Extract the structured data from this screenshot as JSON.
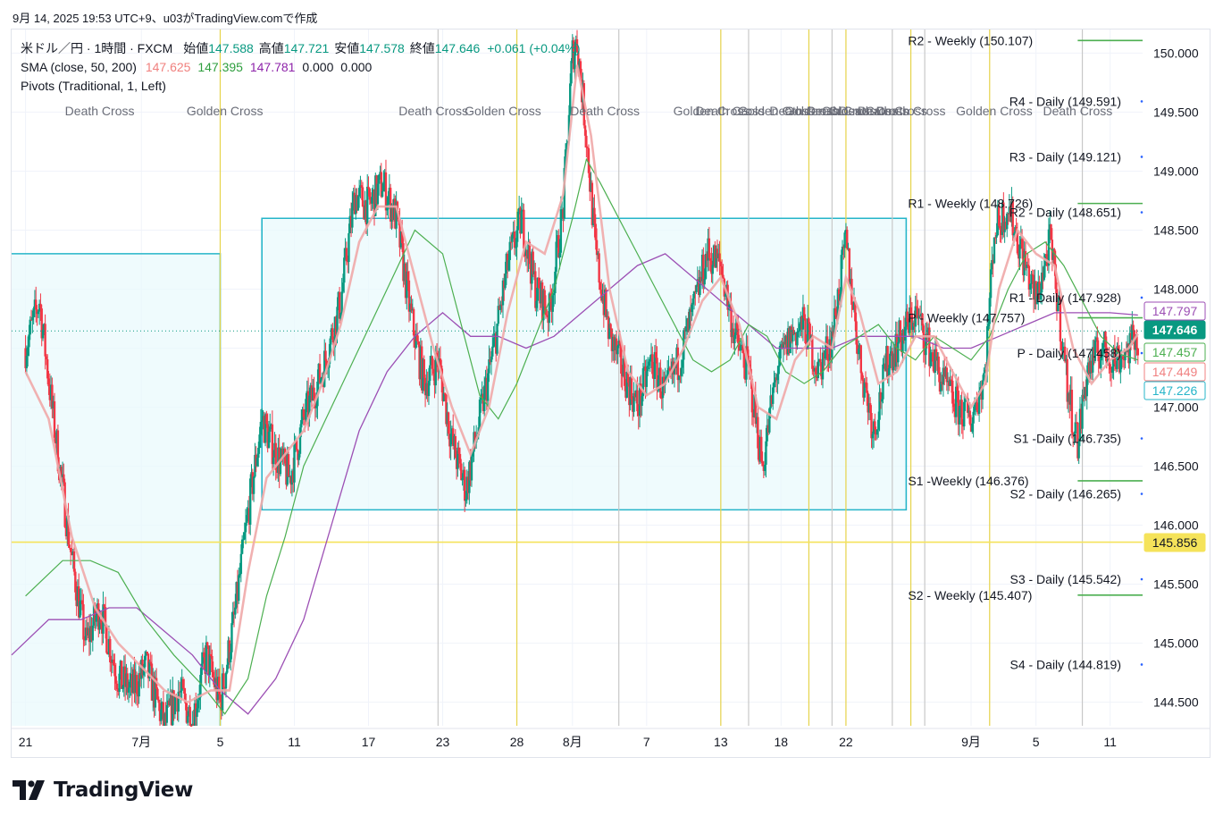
{
  "header": {
    "caption": "9月 14, 2025 19:53 UTC+9、u03がTradingView.comで作成"
  },
  "legend": {
    "symbol": "米ドル／円 · 1時間 · FXCM",
    "open_label": "始値",
    "open": "147.588",
    "high_label": "高値",
    "high": "147.721",
    "low_label": "安値",
    "low": "147.578",
    "close_label": "終値",
    "close": "147.646",
    "change": "+0.061 (+0.04%)",
    "sma_title": "SMA (close, 50, 200)",
    "sma_v1": "147.625",
    "sma_v2": "147.395",
    "sma_v3": "147.781",
    "sma_v4": "0.000",
    "sma_v5": "0.000",
    "pivots_title": "Pivots (Traditional, 1, Left)"
  },
  "logo": {
    "text": "TradingView"
  },
  "colors": {
    "up": "#089981",
    "down": "#f23645",
    "sma_fast": "#f0a8a8",
    "sma_mid": "#4caf50",
    "sma_slow": "#9c4fb4",
    "box": "#26b5c9",
    "box_fill": "#eafafc",
    "pivot_weekly": "#4caf50",
    "pivot_daily": "#2962ff",
    "vline": "#e6d34a",
    "vline_gray": "#c8c8c8",
    "hline": "#f5e35a"
  },
  "chart_data": {
    "type": "candlestick",
    "symbol": "USDJPY",
    "timeframe": "1時間",
    "y_axis": {
      "range": [
        144.3,
        150.2
      ],
      "ticks": [
        "144.500",
        "145.000",
        "145.500",
        "146.000",
        "146.500",
        "147.000",
        "147.500",
        "148.000",
        "148.500",
        "149.000",
        "149.500",
        "150.000"
      ]
    },
    "x_axis": {
      "ticks": [
        {
          "label": "21",
          "t": 0
        },
        {
          "label": "7月",
          "t": 25
        },
        {
          "label": "5",
          "t": 42
        },
        {
          "label": "11",
          "t": 58
        },
        {
          "label": "17",
          "t": 74
        },
        {
          "label": "23",
          "t": 90
        },
        {
          "label": "28",
          "t": 106
        },
        {
          "label": "8月",
          "t": 118
        },
        {
          "label": "7",
          "t": 134
        },
        {
          "label": "13",
          "t": 150
        },
        {
          "label": "18",
          "t": 163
        },
        {
          "label": "22",
          "t": 177
        },
        {
          "label": "9月",
          "t": 204
        },
        {
          "label": "5",
          "t": 218
        },
        {
          "label": "11",
          "t": 234
        }
      ],
      "range": [
        -3,
        241
      ]
    },
    "price_path": [
      [
        0,
        147.5
      ],
      [
        3,
        147.9
      ],
      [
        6,
        146.9
      ],
      [
        10,
        145.7
      ],
      [
        13,
        145.0
      ],
      [
        16,
        145.3
      ],
      [
        20,
        144.7
      ],
      [
        23,
        144.6
      ],
      [
        26,
        144.8
      ],
      [
        30,
        144.3
      ],
      [
        33,
        144.6
      ],
      [
        36,
        144.35
      ],
      [
        39,
        144.9
      ],
      [
        42,
        144.5
      ],
      [
        45,
        145.2
      ],
      [
        48,
        146.1
      ],
      [
        51,
        146.9
      ],
      [
        54,
        146.6
      ],
      [
        57,
        146.4
      ],
      [
        60,
        146.9
      ],
      [
        64,
        147.3
      ],
      [
        68,
        147.9
      ],
      [
        71,
        148.8
      ],
      [
        74,
        148.7
      ],
      [
        77,
        148.9
      ],
      [
        80,
        148.6
      ],
      [
        83,
        147.8
      ],
      [
        86,
        147.2
      ],
      [
        89,
        147.4
      ],
      [
        92,
        146.7
      ],
      [
        95,
        146.3
      ],
      [
        98,
        146.9
      ],
      [
        101,
        147.5
      ],
      [
        104,
        148.2
      ],
      [
        107,
        148.6
      ],
      [
        110,
        148.0
      ],
      [
        113,
        147.8
      ],
      [
        116,
        148.7
      ],
      [
        118,
        150.0
      ],
      [
        119,
        150.1
      ],
      [
        121,
        149.3
      ],
      [
        123,
        148.3
      ],
      [
        126,
        147.6
      ],
      [
        129,
        147.3
      ],
      [
        132,
        147.0
      ],
      [
        135,
        147.4
      ],
      [
        138,
        147.1
      ],
      [
        141,
        147.4
      ],
      [
        144,
        147.8
      ],
      [
        147,
        148.3
      ],
      [
        150,
        148.2
      ],
      [
        153,
        147.6
      ],
      [
        156,
        147.3
      ],
      [
        159,
        146.5
      ],
      [
        162,
        147.3
      ],
      [
        165,
        147.6
      ],
      [
        168,
        147.7
      ],
      [
        171,
        147.3
      ],
      [
        174,
        147.6
      ],
      [
        177,
        148.4
      ],
      [
        180,
        147.4
      ],
      [
        183,
        146.8
      ],
      [
        186,
        147.4
      ],
      [
        189,
        147.6
      ],
      [
        192,
        147.8
      ],
      [
        195,
        147.5
      ],
      [
        198,
        147.2
      ],
      [
        201,
        147.0
      ],
      [
        204,
        146.9
      ],
      [
        207,
        147.3
      ],
      [
        209,
        148.5
      ],
      [
        212,
        148.7
      ],
      [
        215,
        148.3
      ],
      [
        218,
        147.9
      ],
      [
        221,
        148.4
      ],
      [
        223,
        147.8
      ],
      [
        225,
        147.1
      ],
      [
        227,
        146.7
      ],
      [
        229,
        147.3
      ],
      [
        232,
        147.5
      ],
      [
        235,
        147.4
      ],
      [
        238,
        147.5
      ],
      [
        240,
        147.6
      ]
    ],
    "sma_fast_path": [
      [
        0,
        147.3
      ],
      [
        5,
        146.9
      ],
      [
        10,
        145.9
      ],
      [
        15,
        145.3
      ],
      [
        20,
        145.0
      ],
      [
        25,
        144.8
      ],
      [
        30,
        144.6
      ],
      [
        35,
        144.5
      ],
      [
        40,
        144.6
      ],
      [
        44,
        144.6
      ],
      [
        48,
        145.6
      ],
      [
        52,
        146.4
      ],
      [
        56,
        146.6
      ],
      [
        60,
        146.8
      ],
      [
        64,
        147.2
      ],
      [
        68,
        147.7
      ],
      [
        72,
        148.4
      ],
      [
        76,
        148.7
      ],
      [
        80,
        148.7
      ],
      [
        84,
        148.1
      ],
      [
        88,
        147.5
      ],
      [
        92,
        147.0
      ],
      [
        96,
        146.6
      ],
      [
        100,
        147.0
      ],
      [
        104,
        147.8
      ],
      [
        108,
        148.4
      ],
      [
        112,
        148.3
      ],
      [
        116,
        148.8
      ],
      [
        119,
        149.9
      ],
      [
        122,
        149.3
      ],
      [
        126,
        148.0
      ],
      [
        130,
        147.3
      ],
      [
        134,
        147.1
      ],
      [
        138,
        147.2
      ],
      [
        142,
        147.5
      ],
      [
        146,
        147.9
      ],
      [
        150,
        148.1
      ],
      [
        154,
        147.7
      ],
      [
        158,
        147.0
      ],
      [
        162,
        146.9
      ],
      [
        166,
        147.4
      ],
      [
        170,
        147.6
      ],
      [
        174,
        147.5
      ],
      [
        177,
        148.1
      ],
      [
        180,
        147.8
      ],
      [
        184,
        147.2
      ],
      [
        188,
        147.3
      ],
      [
        192,
        147.6
      ],
      [
        196,
        147.6
      ],
      [
        200,
        147.3
      ],
      [
        204,
        147.0
      ],
      [
        207,
        147.2
      ],
      [
        210,
        148.0
      ],
      [
        214,
        148.5
      ],
      [
        218,
        148.3
      ],
      [
        222,
        148.2
      ],
      [
        226,
        147.5
      ],
      [
        230,
        147.2
      ],
      [
        234,
        147.4
      ],
      [
        238,
        147.5
      ],
      [
        240,
        147.62
      ]
    ],
    "sma_mid_path": [
      [
        0,
        145.4
      ],
      [
        8,
        145.7
      ],
      [
        14,
        145.7
      ],
      [
        20,
        145.6
      ],
      [
        26,
        145.2
      ],
      [
        32,
        144.9
      ],
      [
        38,
        144.65
      ],
      [
        43,
        144.4
      ],
      [
        48,
        144.7
      ],
      [
        52,
        145.4
      ],
      [
        56,
        145.9
      ],
      [
        60,
        146.5
      ],
      [
        66,
        147.0
      ],
      [
        72,
        147.5
      ],
      [
        78,
        148.0
      ],
      [
        84,
        148.5
      ],
      [
        90,
        148.3
      ],
      [
        94,
        147.7
      ],
      [
        98,
        147.1
      ],
      [
        102,
        146.9
      ],
      [
        106,
        147.2
      ],
      [
        110,
        147.6
      ],
      [
        114,
        148.0
      ],
      [
        118,
        148.6
      ],
      [
        121,
        149.1
      ],
      [
        124,
        148.9
      ],
      [
        128,
        148.6
      ],
      [
        132,
        148.3
      ],
      [
        136,
        148.0
      ],
      [
        140,
        147.7
      ],
      [
        144,
        147.4
      ],
      [
        148,
        147.3
      ],
      [
        152,
        147.4
      ],
      [
        156,
        147.7
      ],
      [
        160,
        147.6
      ],
      [
        164,
        147.3
      ],
      [
        168,
        147.2
      ],
      [
        172,
        147.3
      ],
      [
        176,
        147.5
      ],
      [
        180,
        147.6
      ],
      [
        184,
        147.7
      ],
      [
        188,
        147.5
      ],
      [
        192,
        147.4
      ],
      [
        196,
        147.6
      ],
      [
        200,
        147.5
      ],
      [
        204,
        147.4
      ],
      [
        208,
        147.6
      ],
      [
        212,
        148.0
      ],
      [
        216,
        148.3
      ],
      [
        220,
        148.4
      ],
      [
        224,
        148.2
      ],
      [
        228,
        147.9
      ],
      [
        232,
        147.6
      ],
      [
        236,
        147.45
      ],
      [
        240,
        147.4
      ]
    ],
    "sma_slow_path": [
      [
        -3,
        144.9
      ],
      [
        5,
        145.2
      ],
      [
        12,
        145.2
      ],
      [
        18,
        145.3
      ],
      [
        24,
        145.3
      ],
      [
        30,
        145.1
      ],
      [
        36,
        144.9
      ],
      [
        42,
        144.6
      ],
      [
        48,
        144.4
      ],
      [
        54,
        144.7
      ],
      [
        60,
        145.2
      ],
      [
        66,
        146.0
      ],
      [
        72,
        146.8
      ],
      [
        78,
        147.3
      ],
      [
        84,
        147.6
      ],
      [
        90,
        147.8
      ],
      [
        96,
        147.6
      ],
      [
        102,
        147.6
      ],
      [
        108,
        147.5
      ],
      [
        114,
        147.6
      ],
      [
        120,
        147.8
      ],
      [
        126,
        148.0
      ],
      [
        132,
        148.2
      ],
      [
        138,
        148.3
      ],
      [
        144,
        148.1
      ],
      [
        150,
        147.9
      ],
      [
        156,
        147.7
      ],
      [
        162,
        147.5
      ],
      [
        168,
        147.5
      ],
      [
        174,
        147.5
      ],
      [
        180,
        147.6
      ],
      [
        186,
        147.6
      ],
      [
        192,
        147.6
      ],
      [
        198,
        147.5
      ],
      [
        204,
        147.5
      ],
      [
        210,
        147.6
      ],
      [
        216,
        147.7
      ],
      [
        222,
        147.8
      ],
      [
        228,
        147.8
      ],
      [
        234,
        147.8
      ],
      [
        240,
        147.78
      ]
    ],
    "boxes": [
      {
        "t0": -3,
        "t1": 42,
        "top": 148.3,
        "bottom": null
      },
      {
        "t0": 51,
        "t1": 190,
        "top": 148.6,
        "bottom": 146.13
      }
    ],
    "horizontal_lines": [
      {
        "price": 145.856,
        "label": "145.856"
      }
    ],
    "vertical_lines": [
      {
        "t": 42,
        "color": "yellow"
      },
      {
        "t": 89,
        "color": "gray"
      },
      {
        "t": 106,
        "color": "yellow"
      },
      {
        "t": 128,
        "color": "gray"
      },
      {
        "t": 150,
        "color": "yellow"
      },
      {
        "t": 156,
        "color": "gray"
      },
      {
        "t": 169,
        "color": "yellow"
      },
      {
        "t": 174,
        "color": "gray"
      },
      {
        "t": 177,
        "color": "yellow"
      },
      {
        "t": 187,
        "color": "gray"
      },
      {
        "t": 191,
        "color": "yellow"
      },
      {
        "t": 194,
        "color": "gray"
      },
      {
        "t": 208,
        "color": "yellow"
      },
      {
        "t": 228,
        "color": "gray"
      }
    ],
    "cross_annotations": [
      {
        "text": "Death Cross",
        "t": 16
      },
      {
        "text": "Golden Cross",
        "t": 43
      },
      {
        "text": "Death Cross",
        "t": 88
      },
      {
        "text": "Golden Cross",
        "t": 103
      },
      {
        "text": "Death Cross",
        "t": 125
      },
      {
        "text": "Golden Cross",
        "t": 148
      },
      {
        "text": "Death Cross",
        "t": 152
      },
      {
        "text": "Golden Cross",
        "t": 162
      },
      {
        "text": "Death Cross",
        "t": 168
      },
      {
        "text": "Golden Cross",
        "t": 172
      },
      {
        "text": "Death Cross",
        "t": 176
      },
      {
        "text": "Golden Cross",
        "t": 180
      },
      {
        "text": "Death Cross",
        "t": 183
      },
      {
        "text": "Death Cross",
        "t": 187
      },
      {
        "text": "Death Cross",
        "t": 191
      },
      {
        "text": "Golden Cross",
        "t": 209
      },
      {
        "text": "Death Cross",
        "t": 227
      }
    ],
    "pivots": [
      {
        "label": "R2 - Weekly (150.107)",
        "price": 150.107,
        "kind": "weekly",
        "t0": 190
      },
      {
        "label": "R4 - Daily (149.591)",
        "price": 149.591,
        "kind": "daily",
        "t0": 208
      },
      {
        "label": "R3 - Daily (149.121)",
        "price": 149.121,
        "kind": "daily",
        "t0": 208
      },
      {
        "label": "R1 - Weekly (148.726)",
        "price": 148.726,
        "kind": "weekly",
        "t0": 190
      },
      {
        "label": "R2 - Daily (148.651)",
        "price": 148.651,
        "kind": "daily",
        "t0": 208
      },
      {
        "label": "R1 - Daily (147.928)",
        "price": 147.928,
        "kind": "daily",
        "t0": 208
      },
      {
        "label": "P - Weekly (147.757)",
        "price": 147.757,
        "kind": "weekly",
        "t0": 190
      },
      {
        "label": "P - Daily (147.458)",
        "price": 147.458,
        "kind": "daily",
        "t0": 208
      },
      {
        "label": "S1 -Daily (146.735)",
        "price": 146.735,
        "kind": "daily",
        "t0": 208
      },
      {
        "label": "S1 -Weekly (146.376)",
        "price": 146.376,
        "kind": "weekly",
        "t0": 190
      },
      {
        "label": "S2 - Daily (146.265)",
        "price": 146.265,
        "kind": "daily",
        "t0": 208
      },
      {
        "label": "S3 - Daily (145.542)",
        "price": 145.542,
        "kind": "daily",
        "t0": 208
      },
      {
        "label": "S2 - Weekly (145.407)",
        "price": 145.407,
        "kind": "weekly",
        "t0": 190
      },
      {
        "label": "S4 - Daily (144.819)",
        "price": 144.819,
        "kind": "daily",
        "t0": 208
      }
    ],
    "price_labels": [
      {
        "value": "147.797",
        "color": "#9c4fb4",
        "style": "outline"
      },
      {
        "value": "147.646",
        "color": "#089981",
        "style": "filled"
      },
      {
        "value": "147.457",
        "color": "#4caf50",
        "style": "outline"
      },
      {
        "value": "147.449",
        "color": "#f08080",
        "style": "outline"
      },
      {
        "value": "147.226",
        "color": "#26b5c9",
        "style": "outline"
      },
      {
        "value": "145.856",
        "color": "#f5e35a",
        "style": "yellow"
      }
    ],
    "last_price": 147.646
  }
}
